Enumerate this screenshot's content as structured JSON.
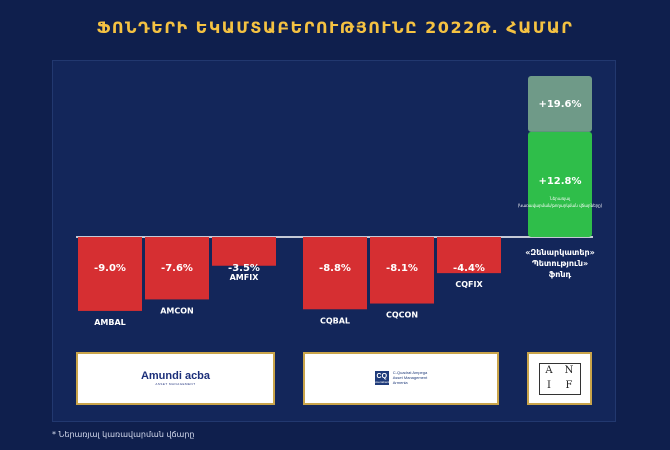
{
  "title": "ՖՈՆԴԵՐԻ ԵԿԱՄՏԱԲԵՐՈՒԹՅՈՒՆԸ 2022Թ. ՀԱՄԱՐ",
  "footnote": "* Ներառյալ կառավարման վճարը",
  "colors": {
    "background": "#0f1f4d",
    "panel": "#13265a",
    "title": "#f5c242",
    "negative_bar": "#d62f32",
    "positive_bar": "#2fbe4a",
    "positive_faded_bar": "#6f9a88"
  },
  "logos": {
    "amundi": {
      "name": "Amundi acba",
      "sub": "ASSET MANAGEMENT"
    },
    "cquadrat": {
      "mark": "CQ",
      "mark_sub": "Ameriabank",
      "lines": [
        "C-Quadrat Ampega",
        "Asset Management",
        "Armenia"
      ]
    },
    "anif": {
      "letters": [
        "A",
        "N",
        "I",
        "F"
      ]
    }
  },
  "chart_data": {
    "type": "bar",
    "categories": [
      "AMBAL",
      "AMCON",
      "AMFIX",
      "CQBAL",
      "CQCON",
      "CQFIX",
      "«Զենարկատեր» Պետություն» ֆոնդ"
    ],
    "values": [
      -9.0,
      -7.6,
      -3.5,
      -8.8,
      -8.1,
      -4.4,
      12.8
    ],
    "value_labels": [
      "-9.0%",
      "-7.6%",
      "-3.5%",
      "-8.8%",
      "-8.1%",
      "-4.4%",
      "+12.8%"
    ],
    "extra_segment": {
      "category": "«Զենարկատեր» Պետություն» ֆոնդ",
      "value_to": 19.6,
      "label": "+19.6%"
    },
    "extra_note": "Ներառյալ (Կառավարման/թողարկման վճարները)",
    "category_label_lines": [
      [
        "AMBAL"
      ],
      [
        "AMCON"
      ],
      [
        "AMFIX"
      ],
      [
        "CQBAL"
      ],
      [
        "CQCON"
      ],
      [
        "CQFIX"
      ],
      [
        "«Զենարկատեր»",
        "Պետություն»",
        "ֆոնդ"
      ]
    ],
    "groups": [
      {
        "name": "amundi",
        "categories": [
          "AMBAL",
          "AMCON",
          "AMFIX"
        ]
      },
      {
        "name": "cquadrat",
        "categories": [
          "CQBAL",
          "CQCON",
          "CQFIX"
        ]
      },
      {
        "name": "anif",
        "categories": [
          "«Զենարկատեր» Պետություն» ֆոնդ"
        ]
      }
    ],
    "ylim": [
      -10,
      20
    ],
    "title": "ՖՈՆԴԵՐԻ ԵԿԱՄՏԱԲԵՐՈՒԹՅՈՒՆԸ 2022Թ. ՀԱՄԱՐ",
    "xlabel": "",
    "ylabel": ""
  }
}
